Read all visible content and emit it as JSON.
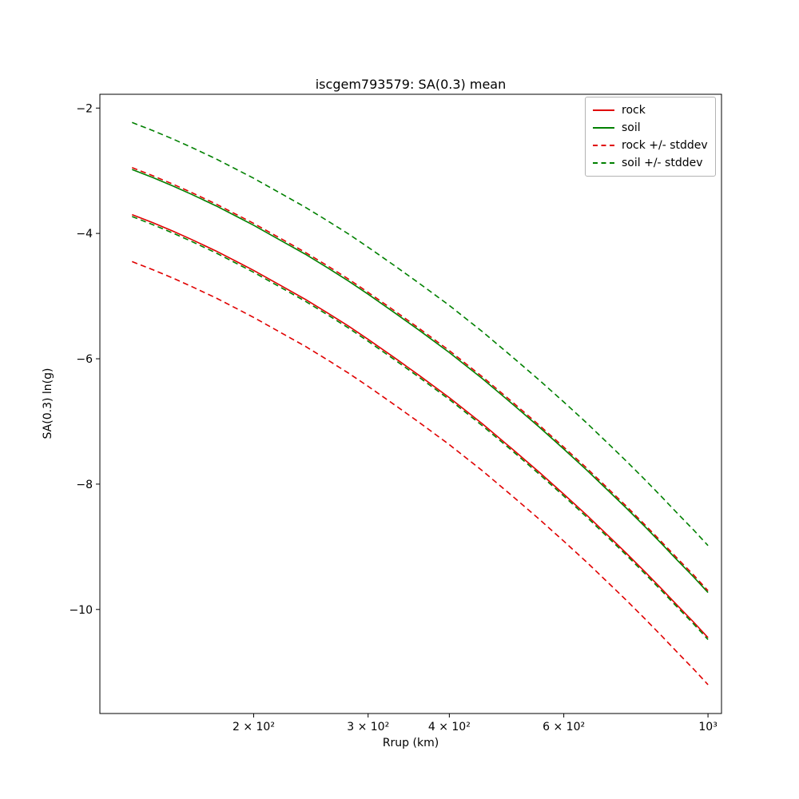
{
  "chart_data": {
    "type": "line",
    "title": "iscgem793579: SA(0.3) mean",
    "xlabel": "Rrup (km)",
    "ylabel": "SA(0.3) ln(g)",
    "xscale": "log",
    "grid": false,
    "legend_position": "upper right",
    "xlim": [
      116,
      1049
    ],
    "ylim": [
      -11.66,
      -1.78
    ],
    "xticks": {
      "values": [
        200,
        300,
        400,
        600,
        1000
      ],
      "labels": [
        "2 × 10²",
        "3 × 10²",
        "4 × 10²",
        "6 × 10²",
        "10³"
      ]
    },
    "yticks": {
      "values": [
        -2,
        -4,
        -6,
        -8,
        -10
      ],
      "labels": [
        "−2",
        "−4",
        "−6",
        "−8",
        "−10"
      ]
    },
    "x": [
      130,
      140,
      150,
      160,
      175,
      190,
      200,
      220,
      240,
      260,
      280,
      300,
      330,
      360,
      400,
      450,
      500,
      550,
      600,
      650,
      700,
      750,
      800,
      850,
      900,
      950,
      1000
    ],
    "series": [
      {
        "id": "rock",
        "name": "rock",
        "color": "#e00000",
        "dash": false,
        "values": [
          -3.7,
          -3.83,
          -3.96,
          -4.09,
          -4.28,
          -4.47,
          -4.59,
          -4.83,
          -5.05,
          -5.27,
          -5.48,
          -5.69,
          -5.99,
          -6.27,
          -6.62,
          -7.04,
          -7.44,
          -7.81,
          -8.16,
          -8.49,
          -8.81,
          -9.11,
          -9.4,
          -9.68,
          -9.95,
          -10.2,
          -10.45
        ]
      },
      {
        "id": "soil",
        "name": "soil",
        "color": "#008000",
        "dash": false,
        "values": [
          -2.98,
          -3.11,
          -3.24,
          -3.37,
          -3.56,
          -3.75,
          -3.87,
          -4.11,
          -4.33,
          -4.55,
          -4.76,
          -4.97,
          -5.27,
          -5.55,
          -5.9,
          -6.32,
          -6.72,
          -7.09,
          -7.44,
          -7.77,
          -8.09,
          -8.39,
          -8.68,
          -8.96,
          -9.23,
          -9.48,
          -9.73
        ]
      },
      {
        "id": "rock-stddev",
        "name": "rock +/- stddev",
        "color": "#e00000",
        "dash": true,
        "values_upper": [
          -2.95,
          -3.08,
          -3.21,
          -3.34,
          -3.53,
          -3.72,
          -3.84,
          -4.08,
          -4.3,
          -4.52,
          -4.73,
          -4.94,
          -5.24,
          -5.52,
          -5.87,
          -6.29,
          -6.69,
          -7.06,
          -7.41,
          -7.74,
          -8.06,
          -8.36,
          -8.65,
          -8.93,
          -9.2,
          -9.45,
          -9.7
        ],
        "values_lower": [
          -4.45,
          -4.58,
          -4.71,
          -4.84,
          -5.03,
          -5.22,
          -5.34,
          -5.58,
          -5.8,
          -6.02,
          -6.23,
          -6.44,
          -6.74,
          -7.02,
          -7.37,
          -7.79,
          -8.19,
          -8.56,
          -8.91,
          -9.24,
          -9.56,
          -9.86,
          -10.15,
          -10.43,
          -10.7,
          -10.95,
          -11.2
        ]
      },
      {
        "id": "soil-stddev",
        "name": "soil +/- stddev",
        "color": "#008000",
        "dash": true,
        "values_upper": [
          -2.23,
          -2.36,
          -2.49,
          -2.62,
          -2.81,
          -3.0,
          -3.12,
          -3.36,
          -3.58,
          -3.8,
          -4.01,
          -4.22,
          -4.52,
          -4.8,
          -5.15,
          -5.57,
          -5.97,
          -6.34,
          -6.69,
          -7.02,
          -7.34,
          -7.64,
          -7.93,
          -8.21,
          -8.48,
          -8.73,
          -8.98
        ],
        "values_lower": [
          -3.73,
          -3.86,
          -3.99,
          -4.12,
          -4.31,
          -4.5,
          -4.62,
          -4.86,
          -5.08,
          -5.3,
          -5.51,
          -5.72,
          -6.02,
          -6.3,
          -6.65,
          -7.07,
          -7.47,
          -7.84,
          -8.19,
          -8.52,
          -8.84,
          -9.14,
          -9.43,
          -9.71,
          -9.98,
          -10.23,
          -10.48
        ]
      }
    ],
    "legend_entries": [
      "rock",
      "soil",
      "rock +/- stddev",
      "soil +/- stddev"
    ]
  }
}
